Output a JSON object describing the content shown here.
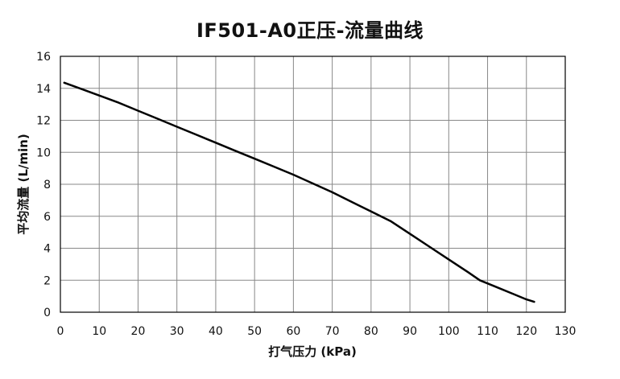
{
  "chart_data": {
    "type": "line",
    "title": "IF501-A0正压-流量曲线",
    "xlabel": "打气压力 (kPa)",
    "ylabel": "平均流量 (L/min)",
    "xlim": [
      0,
      130
    ],
    "ylim": [
      0,
      16
    ],
    "xticks": [
      0,
      10,
      20,
      30,
      40,
      50,
      60,
      70,
      80,
      90,
      100,
      110,
      120,
      130
    ],
    "yticks": [
      0,
      2,
      4,
      6,
      8,
      10,
      12,
      14,
      16
    ],
    "grid": true,
    "series": [
      {
        "color": "#000000",
        "x": [
          1,
          5,
          10,
          15,
          20,
          25,
          30,
          35,
          40,
          45,
          50,
          55,
          60,
          65,
          70,
          75,
          80,
          85,
          90,
          95,
          100,
          105,
          108,
          112,
          116,
          120,
          122
        ],
        "y": [
          14.35,
          14.0,
          13.55,
          13.1,
          12.6,
          12.1,
          11.6,
          11.1,
          10.6,
          10.1,
          9.6,
          9.1,
          8.6,
          8.05,
          7.5,
          6.9,
          6.3,
          5.7,
          4.9,
          4.1,
          3.3,
          2.5,
          2.0,
          1.6,
          1.2,
          0.8,
          0.65
        ]
      }
    ]
  }
}
